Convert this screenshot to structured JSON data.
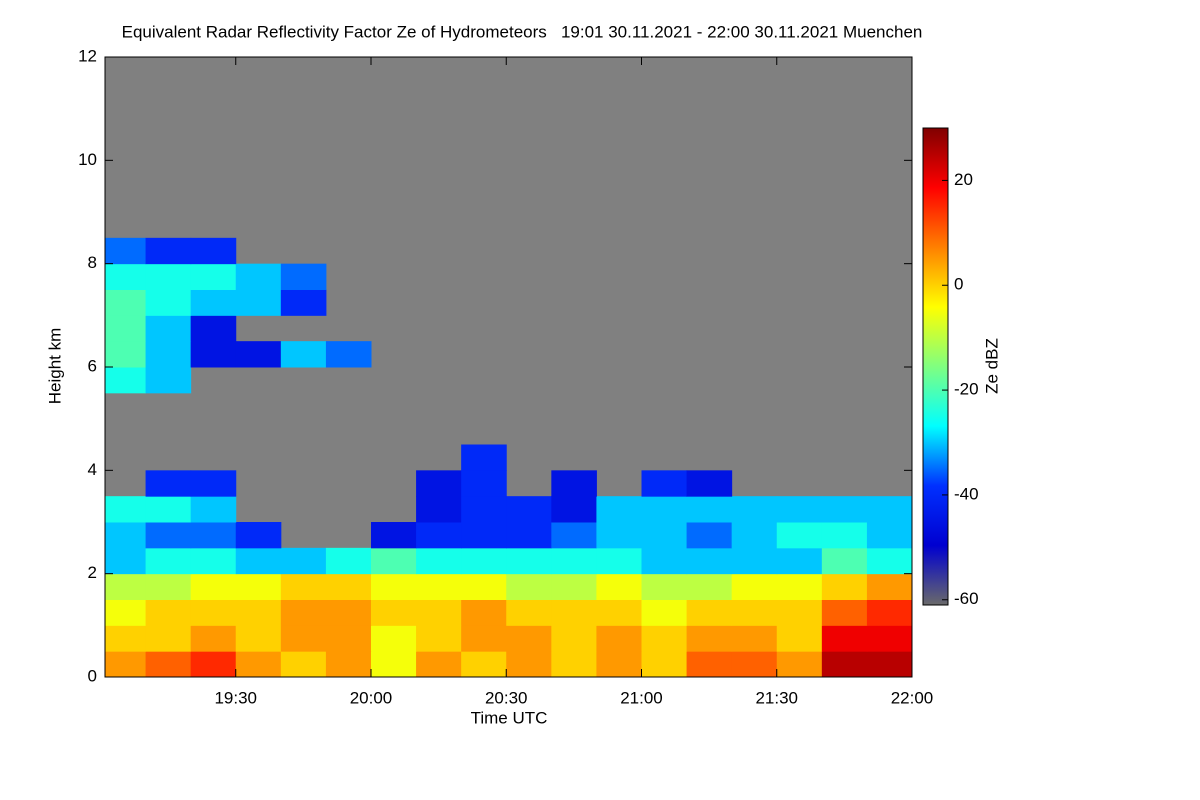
{
  "chart_data": {
    "type": "heatmap",
    "title": "Equivalent Radar Reflectivity Factor Ze of Hydrometeors   19:01 30.11.2021 - 22:00 30.11.2021 Muenchen",
    "x_label": "Time UTC",
    "y_label": "Height km",
    "colorbar_label": "Ze dBZ",
    "xlim": [
      1141,
      1320
    ],
    "xticks": [
      {
        "value": 1170,
        "label": "19:30"
      },
      {
        "value": 1200,
        "label": "20:00"
      },
      {
        "value": 1230,
        "label": "20:30"
      },
      {
        "value": 1260,
        "label": "21:00"
      },
      {
        "value": 1290,
        "label": "21:30"
      },
      {
        "value": 1320,
        "label": "22:00"
      }
    ],
    "ylim": [
      0,
      12
    ],
    "yticks": [
      0,
      2,
      4,
      6,
      8,
      10,
      12
    ],
    "clim": [
      -61,
      30
    ],
    "cticks": [
      -60,
      -40,
      -20,
      0,
      20
    ],
    "colormap": [
      "#6a6a6a",
      "#0000d0",
      "#0030ff",
      "#00ffff",
      "#80ff80",
      "#ffff00",
      "#ff8000",
      "#ff0000",
      "#800000"
    ],
    "background_color": "#808080",
    "x_bins": [
      1140,
      1150,
      1160,
      1170,
      1180,
      1190,
      1200,
      1210,
      1220,
      1230,
      1240,
      1250,
      1260,
      1270,
      1280,
      1290,
      1300,
      1310,
      1320
    ],
    "y_bins": [
      0,
      0.5,
      1,
      1.5,
      2,
      2.5,
      3,
      3.5,
      4,
      4.5,
      5,
      5.5,
      6,
      6.5,
      7,
      7.5,
      8,
      8.5
    ],
    "z": [
      [
        5,
        10,
        15,
        5,
        0,
        5,
        -5,
        5,
        0,
        5,
        0,
        5,
        0,
        10,
        10,
        5,
        25,
        25
      ],
      [
        0,
        0,
        5,
        0,
        5,
        5,
        -5,
        0,
        5,
        5,
        0,
        5,
        0,
        5,
        5,
        0,
        20,
        20
      ],
      [
        -5,
        0,
        0,
        0,
        5,
        5,
        0,
        0,
        5,
        0,
        0,
        0,
        -5,
        0,
        0,
        0,
        10,
        15
      ],
      [
        -10,
        -10,
        -5,
        -5,
        0,
        0,
        -5,
        -5,
        -5,
        -10,
        -10,
        -5,
        -10,
        -10,
        -5,
        -5,
        0,
        5
      ],
      [
        -30,
        -25,
        -25,
        -30,
        -30,
        -25,
        -20,
        -25,
        -25,
        -25,
        -25,
        -25,
        -30,
        -30,
        -30,
        -30,
        -20,
        -25
      ],
      [
        -30,
        -35,
        -35,
        -40,
        null,
        null,
        -45,
        -40,
        -40,
        -40,
        -35,
        -30,
        -30,
        -35,
        -30,
        -25,
        -25,
        -30
      ],
      [
        -25,
        -25,
        -30,
        null,
        null,
        null,
        null,
        -45,
        -40,
        -40,
        -45,
        -30,
        -30,
        -30,
        -30,
        -30,
        -30,
        -30
      ],
      [
        null,
        -40,
        -40,
        null,
        null,
        null,
        null,
        -45,
        -40,
        null,
        -45,
        null,
        -40,
        -45,
        null,
        null,
        null,
        null
      ],
      [
        null,
        null,
        null,
        null,
        null,
        null,
        null,
        null,
        -40,
        null,
        null,
        null,
        null,
        null,
        null,
        null,
        null,
        null
      ],
      [
        null,
        null,
        null,
        null,
        null,
        null,
        null,
        null,
        null,
        null,
        null,
        null,
        null,
        null,
        null,
        null,
        null,
        null
      ],
      [
        null,
        null,
        null,
        null,
        null,
        null,
        null,
        null,
        null,
        null,
        null,
        null,
        null,
        null,
        null,
        null,
        null,
        null
      ],
      [
        -25,
        -30,
        null,
        null,
        null,
        null,
        null,
        null,
        null,
        null,
        null,
        null,
        null,
        null,
        null,
        null,
        null,
        null
      ],
      [
        -20,
        -30,
        -45,
        -45,
        -30,
        -35,
        null,
        null,
        null,
        null,
        null,
        null,
        null,
        null,
        null,
        null,
        null,
        null
      ],
      [
        -20,
        -30,
        -45,
        null,
        null,
        null,
        null,
        null,
        null,
        null,
        null,
        null,
        null,
        null,
        null,
        null,
        null,
        null
      ],
      [
        -20,
        -25,
        -30,
        -30,
        -40,
        null,
        null,
        null,
        null,
        null,
        null,
        null,
        null,
        null,
        null,
        null,
        null,
        null
      ],
      [
        -25,
        -25,
        -25,
        -30,
        -35,
        null,
        null,
        null,
        null,
        null,
        null,
        null,
        null,
        null,
        null,
        null,
        null,
        null
      ],
      [
        -35,
        -40,
        -40,
        null,
        null,
        null,
        null,
        null,
        null,
        null,
        null,
        null,
        null,
        null,
        null,
        null,
        null,
        null
      ]
    ]
  }
}
